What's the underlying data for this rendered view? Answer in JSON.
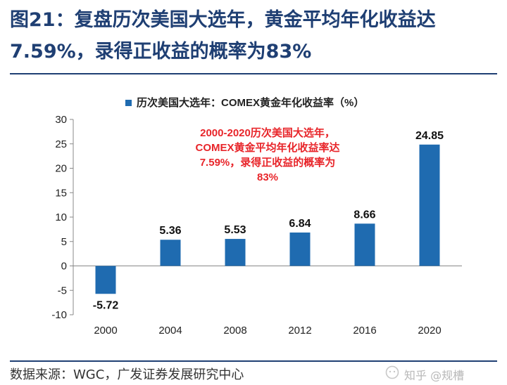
{
  "figure": {
    "title_line1": "图21：复盘历次美国大选年，黄金平均年化收益达",
    "title_line2": "7.59%，录得正收益的概率为83%",
    "source": "数据来源：WGC，广发证券发展研究中心",
    "watermark": "知乎 @规槽",
    "accent_color": "#1f3f73"
  },
  "chart_data": {
    "type": "bar",
    "categories": [
      "2000",
      "2004",
      "2008",
      "2012",
      "2016",
      "2020"
    ],
    "series": [
      {
        "name": "历次美国大选年：COMEX黄金年化收益率（%）",
        "values": [
          -5.72,
          5.36,
          5.53,
          6.84,
          8.66,
          24.85
        ],
        "color": "#1f6bb0"
      }
    ],
    "data_labels": [
      "-5.72",
      "5.36",
      "5.53",
      "6.84",
      "8.66",
      "24.85"
    ],
    "ylim": [
      -10,
      30
    ],
    "yticks": [
      -10,
      -5,
      0,
      5,
      10,
      15,
      20,
      25,
      30
    ],
    "legend_position": "top",
    "grid": false,
    "annotation": {
      "lines": [
        "2000-2020历次美国大选年，",
        "COMEX黄金平均年化收益率达",
        "7.59%，录得正收益的概率为",
        "83%"
      ],
      "color": "#e8252a"
    }
  }
}
